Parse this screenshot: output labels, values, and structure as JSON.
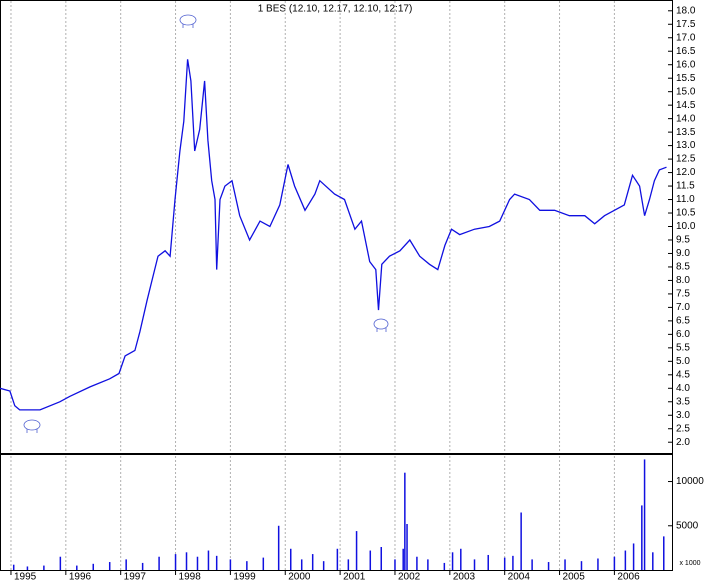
{
  "chart_data": [
    {
      "type": "line",
      "title": "1 BES (12.10, 12.17, 12.10, 12:17)",
      "x": [
        1994.8,
        1994.98,
        1995.07,
        1995.16,
        1995.53,
        1995.89,
        1996.07,
        1996.44,
        1996.8,
        1996.97,
        1997.08,
        1997.26,
        1997.35,
        1997.48,
        1997.57,
        1997.68,
        1997.81,
        1997.9,
        1997.99,
        1998.08,
        1998.15,
        1998.22,
        1998.28,
        1998.35,
        1998.44,
        1998.53,
        1998.59,
        1998.66,
        1998.72,
        1998.75,
        1998.81,
        1998.9,
        1999.03,
        1999.17,
        1999.35,
        1999.54,
        1999.72,
        1999.9,
        2000.05,
        2000.17,
        2000.36,
        2000.54,
        2000.63,
        2000.9,
        2001.08,
        2001.27,
        2001.39,
        2001.54,
        2001.65,
        2001.7,
        2001.76,
        2001.9,
        2002.09,
        2002.27,
        2002.45,
        2002.63,
        2002.78,
        2002.91,
        2003.03,
        2003.18,
        2003.45,
        2003.72,
        2003.91,
        2004.09,
        2004.18,
        2004.45,
        2004.64,
        2004.91,
        2005.18,
        2005.46,
        2005.64,
        2005.82,
        2006.0,
        2006.18,
        2006.33,
        2006.46,
        2006.55,
        2006.64,
        2006.73,
        2006.82,
        2006.95
      ],
      "series": [
        {
          "color": "#1010e0",
          "values": [
            4.0,
            3.9,
            3.35,
            3.2,
            3.2,
            3.5,
            3.7,
            4.05,
            4.35,
            4.55,
            5.2,
            5.4,
            6.1,
            7.25,
            8.0,
            8.9,
            9.1,
            8.9,
            11.0,
            12.8,
            13.9,
            16.2,
            15.4,
            12.8,
            13.6,
            15.4,
            13.2,
            11.7,
            11.0,
            8.4,
            11.0,
            11.5,
            11.7,
            10.4,
            9.5,
            10.2,
            10.0,
            10.8,
            12.3,
            11.5,
            10.6,
            11.2,
            11.7,
            11.2,
            11.0,
            9.9,
            10.2,
            8.7,
            8.4,
            6.9,
            8.6,
            8.9,
            9.1,
            9.5,
            8.9,
            8.6,
            8.4,
            9.3,
            9.9,
            9.7,
            9.9,
            10.0,
            10.2,
            11.0,
            11.2,
            11.0,
            10.6,
            10.6,
            10.4,
            10.4,
            10.1,
            10.4,
            10.6,
            10.8,
            11.9,
            11.5,
            10.4,
            11.0,
            11.7,
            12.1,
            12.2
          ]
        }
      ],
      "xlim": [
        1994.8,
        2007.05
      ],
      "ylim": [
        1.6,
        18.4
      ],
      "yticks": [
        {
          "value": 2,
          "label": "2.0"
        },
        {
          "value": 2.5,
          "label": "2.5"
        },
        {
          "value": 3,
          "label": "3.0"
        },
        {
          "value": 3.5,
          "label": "3.5"
        },
        {
          "value": 4,
          "label": "4.0"
        },
        {
          "value": 4.5,
          "label": "4.5"
        },
        {
          "value": 5,
          "label": "5.0"
        },
        {
          "value": 5.5,
          "label": "5.5"
        },
        {
          "value": 6,
          "label": "6.0"
        },
        {
          "value": 6.5,
          "label": "6.5"
        },
        {
          "value": 7,
          "label": "7.0"
        },
        {
          "value": 7.5,
          "label": "7.5"
        },
        {
          "value": 8,
          "label": "8.0"
        },
        {
          "value": 8.5,
          "label": "8.5"
        },
        {
          "value": 9,
          "label": "9.0"
        },
        {
          "value": 9.5,
          "label": "9.5"
        },
        {
          "value": 10,
          "label": "10.0"
        },
        {
          "value": 10.5,
          "label": "10.5"
        },
        {
          "value": 11,
          "label": "11.0"
        },
        {
          "value": 11.5,
          "label": "11.5"
        },
        {
          "value": 12,
          "label": "12.0"
        },
        {
          "value": 12.5,
          "label": "12.5"
        },
        {
          "value": 13,
          "label": "13.0"
        },
        {
          "value": 13.5,
          "label": "13.5"
        },
        {
          "value": 14,
          "label": "14.0"
        },
        {
          "value": 14.5,
          "label": "14.5"
        },
        {
          "value": 15,
          "label": "15.0"
        },
        {
          "value": 15.5,
          "label": "15.5"
        },
        {
          "value": 16,
          "label": "16.0"
        },
        {
          "value": 16.5,
          "label": "16.5"
        },
        {
          "value": 17,
          "label": "17.0"
        },
        {
          "value": 17.5,
          "label": "17.5"
        },
        {
          "value": 18,
          "label": "18.0"
        }
      ]
    },
    {
      "type": "bar",
      "ylabel": "x 1000",
      "color": "#1010e0",
      "x": [
        1995.05,
        1995.3,
        1995.6,
        1995.9,
        1996.2,
        1996.5,
        1996.8,
        1997.1,
        1997.4,
        1997.7,
        1998.0,
        1998.2,
        1998.4,
        1998.6,
        1998.75,
        1999.0,
        1999.3,
        1999.6,
        1999.88,
        2000.1,
        2000.3,
        2000.5,
        2000.7,
        2000.95,
        2001.15,
        2001.3,
        2001.55,
        2001.75,
        2002.0,
        2002.15,
        2002.18,
        2002.22,
        2002.4,
        2002.6,
        2002.9,
        2003.05,
        2003.2,
        2003.45,
        2003.7,
        2004.0,
        2004.15,
        2004.3,
        2004.5,
        2004.8,
        2005.1,
        2005.4,
        2005.7,
        2006.0,
        2006.2,
        2006.35,
        2006.5,
        2006.55,
        2006.7,
        2006.9
      ],
      "values": [
        600,
        400,
        500,
        1500,
        500,
        700,
        900,
        1200,
        800,
        1500,
        1800,
        2000,
        1500,
        2200,
        1600,
        1200,
        1000,
        1400,
        5000,
        2400,
        1200,
        1800,
        1000,
        2400,
        1200,
        4400,
        2200,
        2600,
        1200,
        2400,
        11000,
        5200,
        1500,
        1200,
        800,
        2000,
        2400,
        1200,
        1700,
        1400,
        1600,
        6500,
        1200,
        900,
        1200,
        1000,
        1300,
        1500,
        2200,
        3000,
        7300,
        12500,
        2000,
        3800
      ],
      "xlim": [
        1994.8,
        2007.05
      ],
      "ylim": [
        0,
        13000
      ],
      "yticks": [
        5000,
        10000
      ],
      "xticks": [
        1995,
        1996,
        1997,
        1998,
        1999,
        2000,
        2001,
        2002,
        2003,
        2004,
        2005,
        2006
      ],
      "xgrid": true
    }
  ]
}
